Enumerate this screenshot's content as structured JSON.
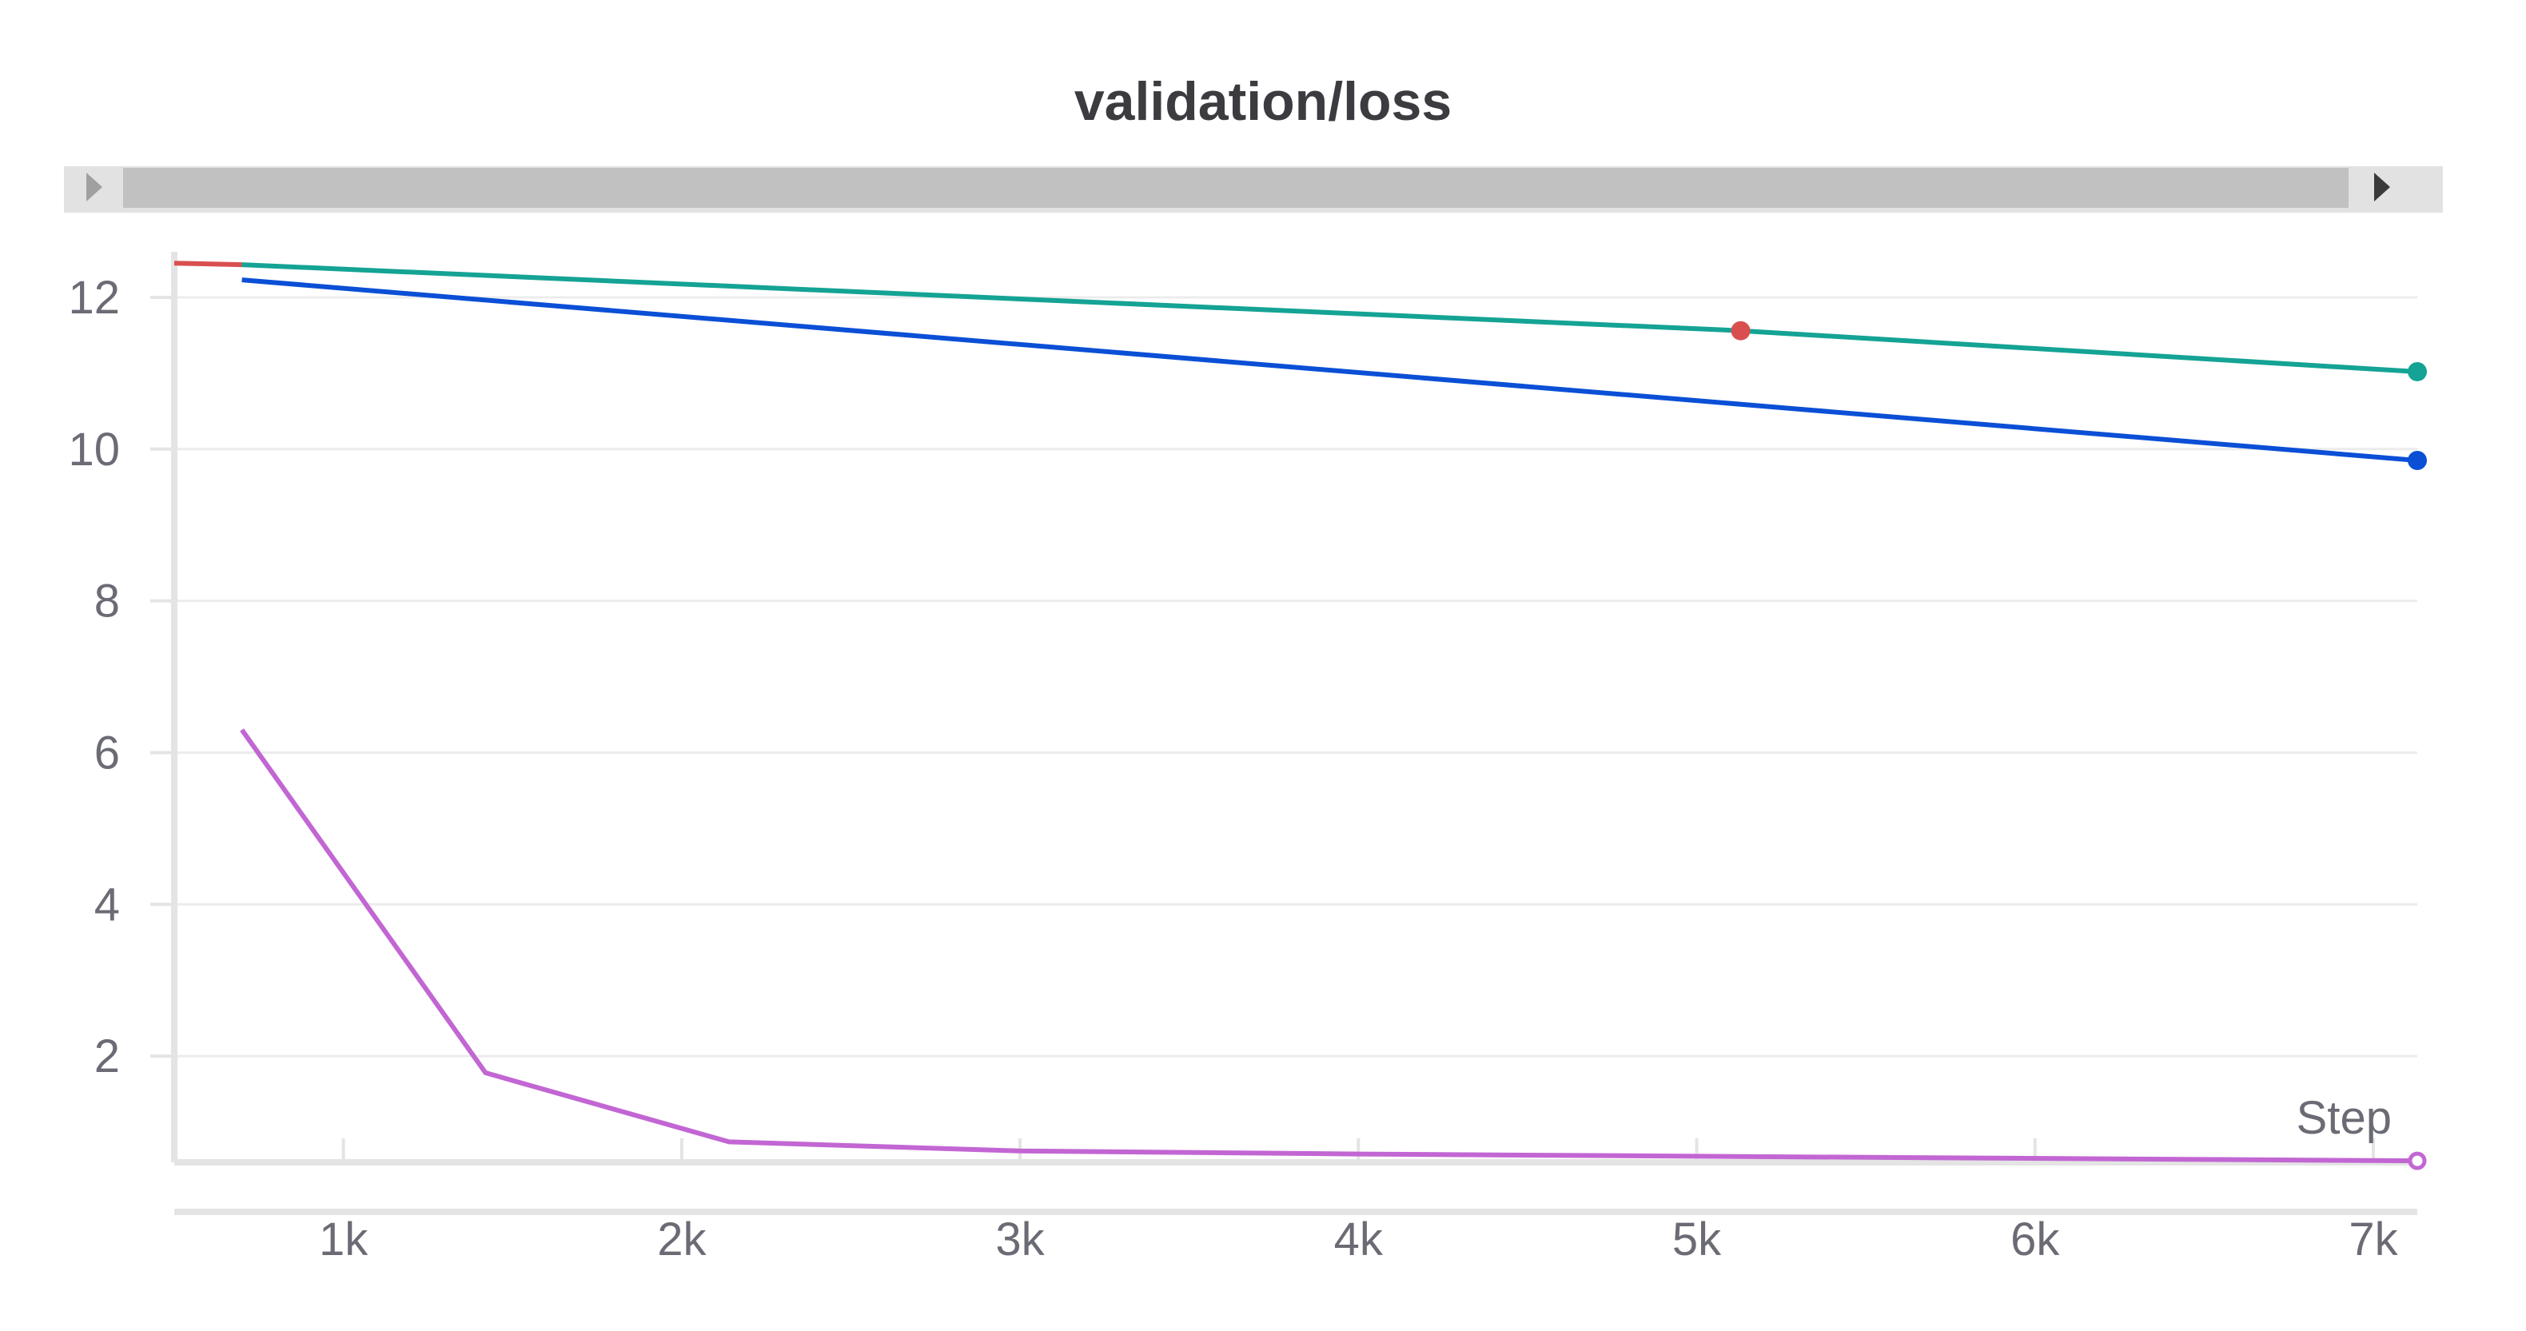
{
  "chart_data": {
    "type": "line",
    "title": "validation/loss",
    "xlabel": "Step",
    "ylabel": "",
    "xlim": [
      500,
      7130
    ],
    "ylim": [
      0.6,
      12.6
    ],
    "x_ticks": [
      1000,
      2000,
      3000,
      4000,
      5000,
      6000,
      7000
    ],
    "x_tick_labels": [
      "1k",
      "2k",
      "3k",
      "4k",
      "5k",
      "6k",
      "7k"
    ],
    "y_ticks": [
      2,
      4,
      6,
      8,
      10,
      12
    ],
    "y_tick_labels": [
      "2",
      "4",
      "6",
      "8",
      "10",
      "12"
    ],
    "grid": true,
    "legend": "none",
    "series": [
      {
        "color": "#d94f4f",
        "points": [
          [
            500,
            12.45
          ],
          [
            700,
            12.43
          ]
        ],
        "marker_points": [
          [
            5130,
            11.56
          ]
        ]
      },
      {
        "color": "#14a394",
        "points": [
          [
            700,
            12.43
          ],
          [
            5130,
            11.56
          ],
          [
            7130,
            11.02
          ]
        ],
        "marker_points": [
          [
            7130,
            11.02
          ]
        ]
      },
      {
        "color": "#0b4fd6",
        "points": [
          [
            700,
            12.23
          ],
          [
            7130,
            9.85
          ]
        ],
        "marker_points": [
          [
            7130,
            9.85
          ]
        ]
      },
      {
        "color": "#c266d3",
        "points": [
          [
            700,
            6.3
          ],
          [
            1420,
            1.78
          ],
          [
            2140,
            0.87
          ],
          [
            3000,
            0.75
          ],
          [
            4000,
            0.71
          ],
          [
            5000,
            0.68
          ],
          [
            7130,
            0.62
          ]
        ],
        "marker_points": [
          [
            7130,
            0.62
          ]
        ],
        "hollow_marker": true
      }
    ]
  },
  "scrollbar": {
    "left_arrow_icon": "triangle-left-icon",
    "right_arrow_icon": "triangle-right-icon"
  }
}
